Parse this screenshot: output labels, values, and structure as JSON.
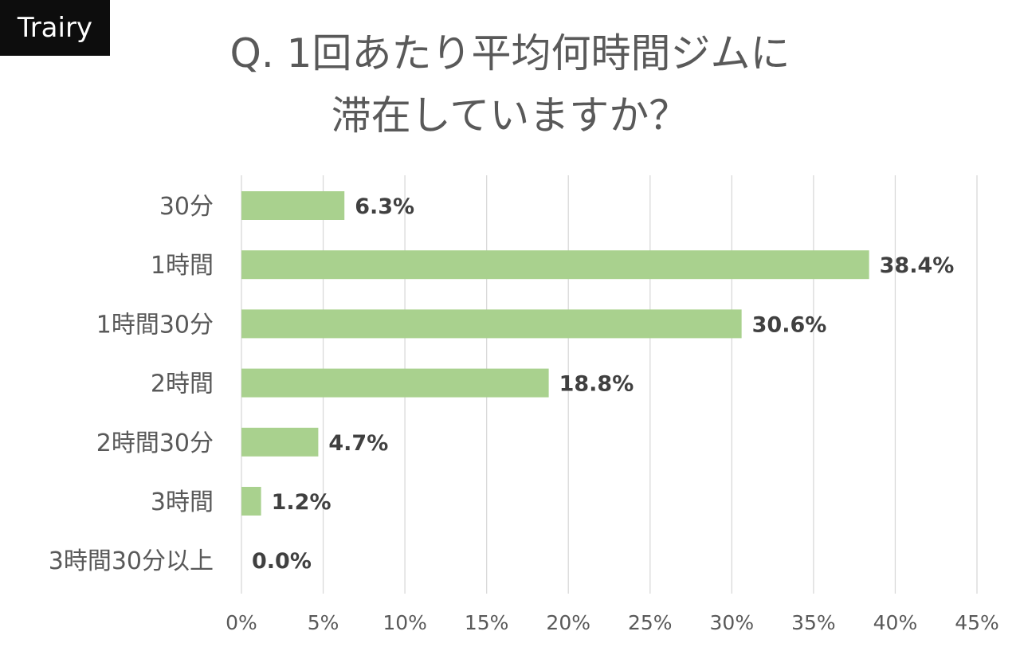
{
  "badge": "Trairy",
  "title_lines": [
    "Q. 1回あたり平均何時間ジムに",
    "滞在していますか？"
  ],
  "colors": {
    "bar": "#a9d18e",
    "grid": "#d9d9d9",
    "category_text": "#595959",
    "tick_text": "#595959",
    "value_text": "#404040"
  },
  "chart_data": {
    "type": "bar",
    "orientation": "horizontal",
    "categories": [
      "30分",
      "1時間",
      "1時間30分",
      "2時間",
      "2時間30分",
      "3時間",
      "3時間30分以上"
    ],
    "values": [
      6.3,
      38.4,
      30.6,
      18.8,
      4.7,
      1.2,
      0.0
    ],
    "data_labels": [
      "6.3%",
      "38.4%",
      "30.6%",
      "18.8%",
      "4.7%",
      "1.2%",
      "0.0%"
    ],
    "x_ticks": [
      0,
      5,
      10,
      15,
      20,
      25,
      30,
      35,
      40,
      45
    ],
    "x_tick_labels": [
      "0%",
      "5%",
      "10%",
      "15%",
      "20%",
      "25%",
      "30%",
      "35%",
      "40%",
      "45%"
    ],
    "xlim": [
      0,
      45
    ],
    "grid": true,
    "legend": "none"
  }
}
